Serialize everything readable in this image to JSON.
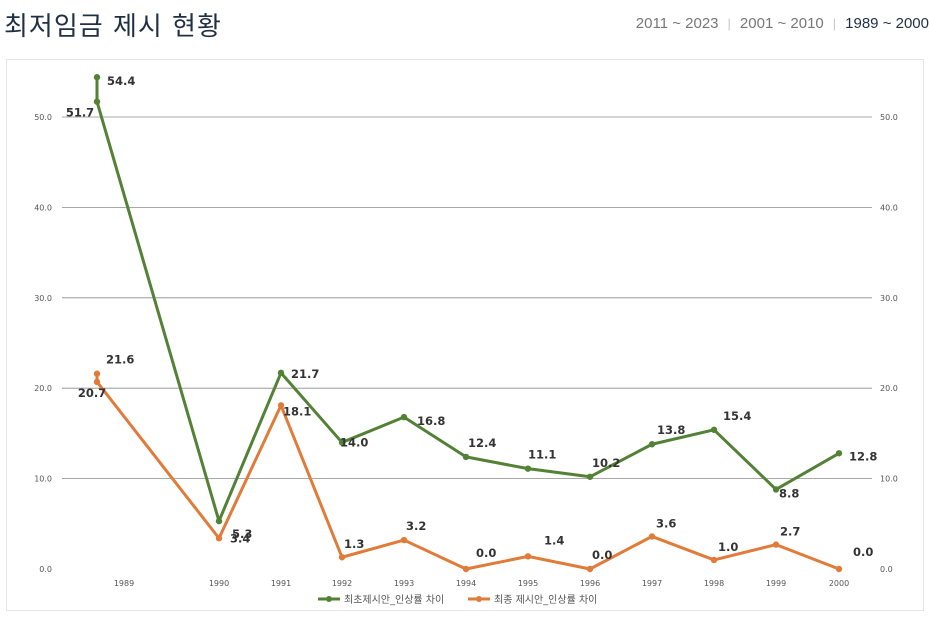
{
  "page": {
    "title": "최저임금 제시 현황",
    "periods": [
      {
        "label": "2011 ~ 2023",
        "active": false
      },
      {
        "label": "2001 ~ 2010",
        "active": false
      },
      {
        "label": "1989 ~ 2000",
        "active": true
      }
    ]
  },
  "chart_data": {
    "type": "line",
    "title": "",
    "xlabel": "",
    "ylabel": "",
    "ylim": [
      0,
      50
    ],
    "yticks": [
      "0.0",
      "10.0",
      "20.0",
      "30.0",
      "40.0",
      "50.0"
    ],
    "grid": true,
    "legend_position": "bottom",
    "categories": [
      "1989",
      "1990",
      "1991",
      "1992",
      "1993",
      "1994",
      "1995",
      "1996",
      "1997",
      "1998",
      "1999",
      "2000"
    ],
    "series": [
      {
        "name": "최초제시안_인상률 차이",
        "color": "#538135",
        "values": [
          54.4,
          5.3,
          21.7,
          14.0,
          16.8,
          12.4,
          11.1,
          10.2,
          13.8,
          15.4,
          8.8,
          12.8
        ],
        "labels": [
          "54.4",
          "5.3",
          "21.7",
          "14.0",
          "16.8",
          "12.4",
          "11.1",
          "10.2",
          "13.8",
          "15.4",
          "8.8",
          "12.8"
        ],
        "extra_points": [
          {
            "category": "1989",
            "value": 51.7,
            "label": "51.7"
          }
        ]
      },
      {
        "name": "최종 제시안_인상률 차이",
        "color": "#e07b39",
        "values": [
          21.6,
          3.4,
          18.1,
          1.3,
          3.2,
          0.0,
          1.4,
          0.0,
          3.6,
          1.0,
          2.7,
          0.0
        ],
        "labels": [
          "21.6",
          "3.4",
          "18.1",
          "1.3",
          "3.2",
          "0.0",
          "1.4",
          "0.0",
          "3.6",
          "1.0",
          "2.7",
          "0.0"
        ],
        "extra_points": [
          {
            "category": "1989",
            "value": 20.7,
            "label": "20.7"
          }
        ]
      }
    ]
  }
}
